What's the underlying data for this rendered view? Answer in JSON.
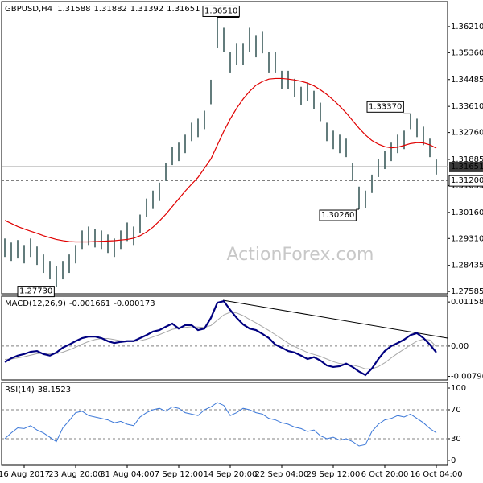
{
  "chart_data": [
    {
      "type": "ohlc",
      "title": "GBPUSD,H4",
      "quote": [
        1.31588,
        1.31882,
        1.31392,
        1.31651
      ],
      "watermark": "ActionForex.com",
      "categories": [
        null,
        null,
        null,
        "16 Aug 2017",
        null,
        null,
        null,
        null,
        null,
        null,
        null,
        "23 Aug 20:00",
        null,
        null,
        null,
        null,
        null,
        null,
        null,
        "31 Aug 04:00",
        null,
        null,
        null,
        null,
        null,
        null,
        null,
        "7 Sep 12:00",
        null,
        null,
        null,
        null,
        null,
        null,
        null,
        "14 Sep 20:00",
        null,
        null,
        null,
        null,
        null,
        null,
        null,
        "22 Sep 04:00",
        null,
        null,
        null,
        null,
        null,
        null,
        null,
        "29 Sep 12:00",
        null,
        null,
        null,
        null,
        null,
        null,
        null,
        "6 Oct 20:00",
        null,
        null,
        null,
        null,
        null,
        null,
        null,
        "16 Oct 04:00"
      ],
      "high": [
        1.2931,
        1.2918,
        1.2926,
        1.291,
        1.2931,
        1.2905,
        1.2879,
        1.2858,
        1.284,
        1.2858,
        1.2879,
        1.291,
        1.2957,
        1.297,
        1.2962,
        1.2957,
        1.2944,
        1.2931,
        1.2957,
        1.2983,
        1.297,
        1.3009,
        1.3061,
        1.3087,
        1.3113,
        1.3178,
        1.323,
        1.3243,
        1.3269,
        1.3308,
        1.3321,
        1.3347,
        1.3448,
        1.3651,
        1.3617,
        1.3539,
        1.3565,
        1.3565,
        1.3617,
        1.3591,
        1.3604,
        1.3539,
        1.3539,
        1.3477,
        1.3477,
        1.3451,
        1.3425,
        1.3438,
        1.3412,
        1.3373,
        1.3308,
        1.3282,
        1.3269,
        1.3256,
        1.3178,
        1.31,
        1.3087,
        1.3139,
        1.3191,
        1.3217,
        1.3243,
        1.3269,
        1.3282,
        1.3337,
        1.3321,
        1.3295,
        1.3256,
        1.31882
      ],
      "low": [
        1.2871,
        1.2858,
        1.2866,
        1.285,
        1.2871,
        1.2845,
        1.2819,
        1.2798,
        1.2773,
        1.2798,
        1.2819,
        1.285,
        1.2897,
        1.291,
        1.2902,
        1.2897,
        1.2884,
        1.2871,
        1.2897,
        1.2923,
        1.291,
        1.2949,
        1.3001,
        1.3027,
        1.3053,
        1.3118,
        1.317,
        1.3183,
        1.3209,
        1.3248,
        1.3261,
        1.3287,
        1.3368,
        1.355,
        1.3537,
        1.3469,
        1.3495,
        1.3495,
        1.3537,
        1.3521,
        1.3534,
        1.3469,
        1.3469,
        1.3417,
        1.3417,
        1.3391,
        1.3365,
        1.3378,
        1.3352,
        1.3313,
        1.3248,
        1.3222,
        1.3209,
        1.3196,
        1.3118,
        1.3026,
        1.303,
        1.3079,
        1.3131,
        1.3157,
        1.3183,
        1.3209,
        1.3222,
        1.3287,
        1.3261,
        1.3235,
        1.3196,
        1.31392
      ],
      "color": "#2f5050",
      "lines": [
        {
          "color": "#e00000",
          "values": [
            1.299,
            1.298,
            1.297,
            1.2962,
            1.2955,
            1.2948,
            1.294,
            1.2934,
            1.2928,
            1.2924,
            1.2921,
            1.292,
            1.292,
            1.292,
            1.2921,
            1.2922,
            1.2923,
            1.2924,
            1.2926,
            1.2928,
            1.2932,
            1.294,
            1.2952,
            1.2968,
            1.2988,
            1.301,
            1.3035,
            1.306,
            1.3085,
            1.3108,
            1.313,
            1.316,
            1.319,
            1.3235,
            1.328,
            1.332,
            1.3355,
            1.3385,
            1.341,
            1.343,
            1.3442,
            1.345,
            1.3452,
            1.3452,
            1.345,
            1.3447,
            1.3443,
            1.3437,
            1.3428,
            1.3415,
            1.34,
            1.3382,
            1.3362,
            1.334,
            1.3315,
            1.329,
            1.3268,
            1.325,
            1.3238,
            1.323,
            1.3226,
            1.3228,
            1.3234,
            1.324,
            1.3243,
            1.3242,
            1.3236,
            1.3225
          ]
        }
      ],
      "level": {
        "value": 1.312,
        "label": "1.31200"
      },
      "annotations": [
        {
          "value": 1.3651,
          "label": "1.36510"
        },
        {
          "value": 1.3337,
          "label": "1.33370"
        },
        {
          "value": 1.3026,
          "label": "1.30260"
        },
        {
          "value": 1.2773,
          "label": "1.27730"
        }
      ],
      "ylim": [
        1.2751,
        1.3702
      ],
      "yticks": [
        {
          "value": 1.3621,
          "label": "1.36210"
        },
        {
          "value": 1.3536,
          "label": "1.35360"
        },
        1.34485,
        {
          "value": 1.3361,
          "label": "1.33610"
        },
        {
          "value": 1.3276,
          "label": "1.32760"
        },
        1.31885,
        1.31035,
        {
          "value": 1.3016,
          "label": "1.30160"
        },
        {
          "value": 1.2931,
          "label": "1.29310"
        },
        1.28435,
        1.27585
      ]
    },
    {
      "type": "line",
      "title": "MACD(12,26,9)",
      "series": [
        {
          "color": "#000080",
          "values": [
            -0.0042,
            -0.0032,
            -0.0025,
            -0.0021,
            -0.0015,
            -0.0013,
            -0.0021,
            -0.0025,
            -0.0017,
            -0.0004,
            0.0004,
            0.0013,
            0.0021,
            0.0025,
            0.0025,
            0.0021,
            0.0013,
            0.0008,
            0.0011,
            0.0013,
            0.0013,
            0.0021,
            0.0029,
            0.0038,
            0.0042,
            0.0051,
            0.0059,
            0.0046,
            0.0055,
            0.0055,
            0.0042,
            0.0046,
            0.0074,
            0.0114,
            0.0118,
            0.0095,
            0.0074,
            0.0057,
            0.0046,
            0.0042,
            0.0032,
            0.0021,
            0.0004,
            -0.0004,
            -0.0013,
            -0.0017,
            -0.0025,
            -0.0034,
            -0.0029,
            -0.0038,
            -0.0051,
            -0.0055,
            -0.0053,
            -0.0046,
            -0.0055,
            -0.0067,
            -0.0076,
            -0.0059,
            -0.0034,
            -0.0013,
            0.0,
            0.0008,
            0.0017,
            0.0029,
            0.0034,
            0.0021,
            0.0004,
            -0.001661
          ]
        },
        {
          "color": "#a8a8a8",
          "values": [
            -0.0035,
            -0.0034,
            -0.0031,
            -0.0028,
            -0.0024,
            -0.002,
            -0.0019,
            -0.002,
            -0.002,
            -0.0016,
            -0.001,
            -0.0003,
            0.0005,
            0.0012,
            0.0017,
            0.002,
            0.002,
            0.0017,
            0.0014,
            0.0013,
            0.0012,
            0.0014,
            0.0018,
            0.0024,
            0.003,
            0.0037,
            0.0044,
            0.0047,
            0.0049,
            0.0051,
            0.005,
            0.0049,
            0.0054,
            0.0068,
            0.0082,
            0.0089,
            0.0087,
            0.008,
            0.007,
            0.0061,
            0.0051,
            0.0041,
            0.003,
            0.0019,
            0.0008,
            -0.0001,
            -0.0009,
            -0.0017,
            -0.0022,
            -0.0027,
            -0.0034,
            -0.0041,
            -0.0046,
            -0.0048,
            -0.005,
            -0.0054,
            -0.006,
            -0.006,
            -0.0054,
            -0.0044,
            -0.0031,
            -0.0019,
            -0.0008,
            0.0003,
            0.0013,
            0.0018,
            0.0016,
            -0.000173
          ]
        }
      ],
      "levels": [
        0
      ],
      "ylim": [
        -0.0089,
        0.0131
      ],
      "yticks": [
        0.011588,
        {
          "value": 0,
          "label": "0.00"
        },
        -0.007961
      ]
    },
    {
      "type": "line",
      "title": "RSI(14)",
      "color": "#3c78d8",
      "values": [
        30,
        38,
        45,
        44,
        48,
        42,
        38,
        32,
        26,
        45,
        55,
        66,
        68,
        62,
        60,
        58,
        56,
        52,
        54,
        50,
        48,
        60,
        66,
        70,
        72,
        68,
        74,
        72,
        66,
        64,
        62,
        70,
        74,
        80,
        76,
        62,
        66,
        72,
        70,
        66,
        64,
        58,
        56,
        52,
        50,
        46,
        44,
        40,
        42,
        34,
        30,
        32,
        28,
        30,
        26,
        20,
        22,
        40,
        50,
        56,
        58,
        62,
        60,
        64,
        58,
        52,
        44,
        38.1523
      ],
      "levels": [
        70,
        30
      ],
      "ylim": [
        -6.7,
        107.8
      ],
      "yticks": [
        100,
        70,
        30,
        0
      ]
    }
  ]
}
